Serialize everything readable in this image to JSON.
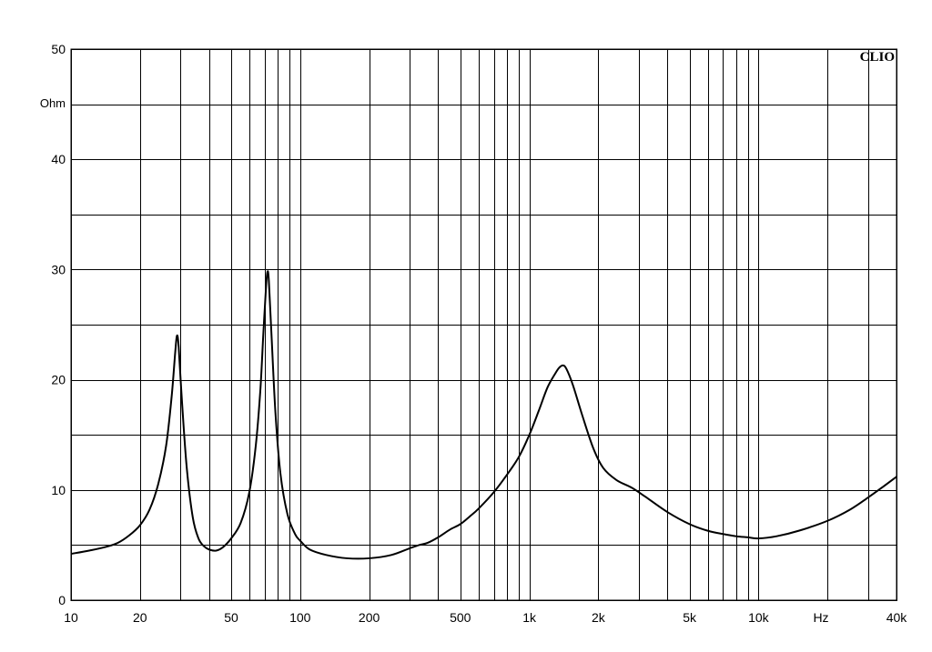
{
  "chart_data": {
    "type": "line",
    "title": "",
    "xlabel": "",
    "ylabel": "",
    "x_unit_label": "Hz",
    "y_unit_label": "Ohm",
    "brand": "CLIO",
    "x_scale": "log",
    "xlim": [
      10,
      40000
    ],
    "ylim": [
      0,
      50
    ],
    "grid": true,
    "x_gridlines": [
      20,
      30,
      40,
      50,
      60,
      70,
      80,
      90,
      100,
      200,
      300,
      400,
      500,
      600,
      700,
      800,
      900,
      1000,
      2000,
      3000,
      4000,
      5000,
      6000,
      7000,
      8000,
      9000,
      10000,
      20000,
      30000
    ],
    "y_gridlines": [
      5,
      10,
      15,
      20,
      25,
      30,
      35,
      40,
      45
    ],
    "x_ticks": [
      {
        "value": 10,
        "label": "10"
      },
      {
        "value": 20,
        "label": "20"
      },
      {
        "value": 50,
        "label": "50"
      },
      {
        "value": 100,
        "label": "100"
      },
      {
        "value": 200,
        "label": "200"
      },
      {
        "value": 500,
        "label": "500"
      },
      {
        "value": 1000,
        "label": "1k"
      },
      {
        "value": 2000,
        "label": "2k"
      },
      {
        "value": 5000,
        "label": "5k"
      },
      {
        "value": 10000,
        "label": "10k"
      },
      {
        "value": 40000,
        "label": "40k"
      }
    ],
    "y_ticks": [
      {
        "value": 0,
        "label": "0"
      },
      {
        "value": 10,
        "label": "10"
      },
      {
        "value": 20,
        "label": "20"
      },
      {
        "value": 30,
        "label": "30"
      },
      {
        "value": 40,
        "label": "40"
      },
      {
        "value": 50,
        "label": "50"
      }
    ],
    "series": [
      {
        "color": "#000000",
        "points": [
          [
            10,
            4.2
          ],
          [
            12,
            4.5
          ],
          [
            14,
            4.8
          ],
          [
            16,
            5.2
          ],
          [
            18,
            5.9
          ],
          [
            20,
            6.8
          ],
          [
            22,
            8.2
          ],
          [
            24,
            10.5
          ],
          [
            26,
            14.0
          ],
          [
            27.5,
            18.5
          ],
          [
            28.5,
            22.5
          ],
          [
            29,
            24.0
          ],
          [
            29.5,
            23.0
          ],
          [
            30.5,
            18.0
          ],
          [
            32,
            12.0
          ],
          [
            34,
            7.5
          ],
          [
            36,
            5.6
          ],
          [
            38,
            4.9
          ],
          [
            40,
            4.6
          ],
          [
            43,
            4.5
          ],
          [
            46,
            4.8
          ],
          [
            50,
            5.6
          ],
          [
            55,
            7.0
          ],
          [
            60,
            9.8
          ],
          [
            64,
            14.0
          ],
          [
            67,
            19.0
          ],
          [
            69,
            24.0
          ],
          [
            71,
            28.5
          ],
          [
            72,
            29.8
          ],
          [
            73,
            29.0
          ],
          [
            75,
            24.0
          ],
          [
            78,
            17.0
          ],
          [
            82,
            11.5
          ],
          [
            88,
            7.8
          ],
          [
            95,
            6.0
          ],
          [
            100,
            5.4
          ],
          [
            110,
            4.6
          ],
          [
            130,
            4.1
          ],
          [
            160,
            3.8
          ],
          [
            200,
            3.8
          ],
          [
            250,
            4.1
          ],
          [
            300,
            4.7
          ],
          [
            330,
            5.0
          ],
          [
            360,
            5.2
          ],
          [
            400,
            5.7
          ],
          [
            450,
            6.4
          ],
          [
            500,
            6.9
          ],
          [
            550,
            7.6
          ],
          [
            600,
            8.3
          ],
          [
            700,
            9.8
          ],
          [
            800,
            11.4
          ],
          [
            900,
            13.0
          ],
          [
            1000,
            15.0
          ],
          [
            1100,
            17.2
          ],
          [
            1200,
            19.3
          ],
          [
            1300,
            20.6
          ],
          [
            1350,
            21.1
          ],
          [
            1400,
            21.3
          ],
          [
            1450,
            21.0
          ],
          [
            1550,
            19.5
          ],
          [
            1700,
            16.8
          ],
          [
            1900,
            13.8
          ],
          [
            2100,
            12.0
          ],
          [
            2400,
            10.9
          ],
          [
            2800,
            10.2
          ],
          [
            3200,
            9.4
          ],
          [
            4000,
            8.0
          ],
          [
            5000,
            6.9
          ],
          [
            6000,
            6.3
          ],
          [
            7000,
            6.0
          ],
          [
            8000,
            5.8
          ],
          [
            9000,
            5.7
          ],
          [
            10000,
            5.6
          ],
          [
            12000,
            5.8
          ],
          [
            15000,
            6.3
          ],
          [
            20000,
            7.2
          ],
          [
            25000,
            8.2
          ],
          [
            30000,
            9.3
          ],
          [
            35000,
            10.3
          ],
          [
            40000,
            11.2
          ]
        ]
      }
    ]
  }
}
